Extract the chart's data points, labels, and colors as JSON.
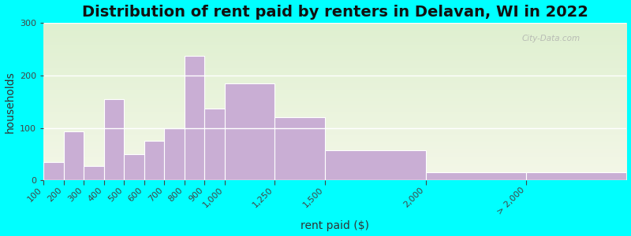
{
  "title": "Distribution of rent paid by renters in Delavan, WI in 2022",
  "xlabel": "rent paid ($)",
  "ylabel": "households",
  "bar_labels": [
    "100",
    "200",
    "300",
    "400",
    "500",
    "600",
    "700",
    "800",
    "900",
    "1,000",
    "1,250",
    "1,500",
    "2,000",
    "> 2,000"
  ],
  "bar_left_edges": [
    100,
    200,
    300,
    400,
    500,
    600,
    700,
    800,
    900,
    1000,
    1250,
    1500,
    2000,
    2500
  ],
  "bar_widths": [
    100,
    100,
    100,
    100,
    100,
    100,
    100,
    100,
    100,
    250,
    250,
    500,
    500,
    500
  ],
  "bar_values": [
    35,
    93,
    27,
    155,
    50,
    75,
    100,
    237,
    137,
    185,
    120,
    57,
    15,
    15
  ],
  "bar_color": "#c9aed4",
  "bar_edge_color": "#ffffff",
  "outer_background": "#00ffff",
  "ylim": [
    0,
    300
  ],
  "yticks": [
    0,
    100,
    200,
    300
  ],
  "xlim": [
    100,
    3000
  ],
  "title_fontsize": 14,
  "axis_label_fontsize": 10,
  "tick_fontsize": 8,
  "watermark_text": "City-Data.com"
}
